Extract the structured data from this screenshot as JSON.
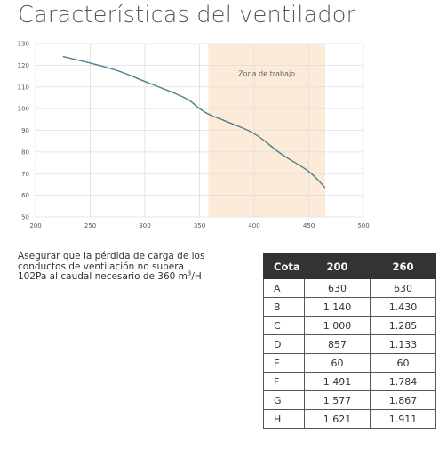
{
  "title": "Características del ventilador",
  "chart_data": {
    "type": "line",
    "title": "",
    "xlabel": "",
    "ylabel": "",
    "xlim": [
      200,
      500
    ],
    "ylim": [
      50,
      130
    ],
    "x_ticks": [
      200,
      250,
      300,
      350,
      400,
      450,
      500
    ],
    "y_ticks": [
      50,
      60,
      70,
      80,
      90,
      100,
      110,
      120,
      130
    ],
    "grid": true,
    "series": [
      {
        "color": "#4a7f8c",
        "x": [
          225,
          250,
          275,
          300,
          325,
          340,
          350,
          360,
          375,
          400,
          425,
          450,
          465
        ],
        "y": [
          124,
          121,
          117.5,
          112.5,
          107.5,
          104,
          100,
          97,
          94,
          88.5,
          79,
          71,
          63.5
        ]
      }
    ],
    "annotation": {
      "label": "Zona de trabajo",
      "x_range": [
        358,
        465
      ],
      "fill": "#fcebd8"
    }
  },
  "note": {
    "line1": "Asegurar que la pérdida de carga de los",
    "line2": "conductos de ventilación no supera",
    "line3": "102Pa al caudal necesario de 360 m",
    "sup": "3",
    "suffix": "/H"
  },
  "table": {
    "headers": [
      "Cota",
      "200",
      "260"
    ],
    "rows": [
      [
        "A",
        "630",
        "630"
      ],
      [
        "B",
        "1.140",
        "1.430"
      ],
      [
        "C",
        "1.000",
        "1.285"
      ],
      [
        "D",
        "857",
        "1.133"
      ],
      [
        "E",
        "60",
        "60"
      ],
      [
        "F",
        "1.491",
        "1.784"
      ],
      [
        "G",
        "1.577",
        "1.867"
      ],
      [
        "H",
        "1.621",
        "1.911"
      ]
    ]
  }
}
